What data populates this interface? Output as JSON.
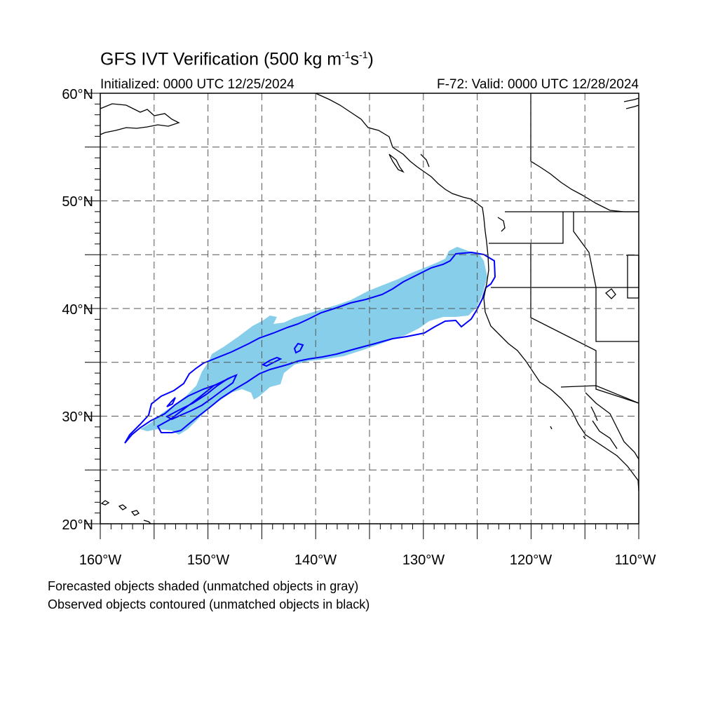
{
  "title": {
    "prefix": "GFS IVT Verification (500 kg m",
    "exp1": "-1",
    "mid": "s",
    "exp2": "-1",
    "suffix": ")"
  },
  "initialized": "Initialized: 0000 UTC 12/25/2024",
  "valid": "F-72: Valid: 0000 UTC 12/28/2024",
  "map": {
    "projection": "equirectangular",
    "lon_range": [
      -160,
      -110
    ],
    "lat_range": [
      20,
      60
    ],
    "lat_labels": [
      "20°N",
      "30°N",
      "40°N",
      "50°N",
      "60°N"
    ],
    "lon_labels": [
      "160°W",
      "150°W",
      "140°W",
      "130°W",
      "120°W",
      "110°W"
    ],
    "grid_interval_deg": 5,
    "grid_style": "dashed",
    "colors": {
      "forecast_fill": "#87ceeb",
      "observed_contour": "#0000ff",
      "coastline": "#000000"
    }
  },
  "footer": {
    "line1": "Forecasted objects shaded (unmatched objects in gray)",
    "line2": "Observed objects contoured (unmatched objects in black)"
  }
}
